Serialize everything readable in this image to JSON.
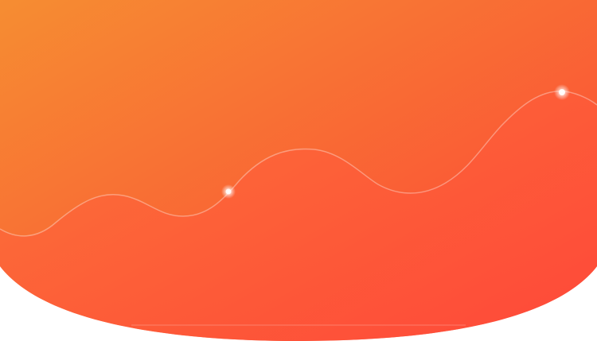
{
  "banner": {
    "gradient": {
      "start": "#F68D32",
      "end": "#FC4337"
    },
    "wave_line_color": "#FFFFFF",
    "glow_dot_color": "#FFFFFF",
    "background": "#FFFFFF"
  }
}
